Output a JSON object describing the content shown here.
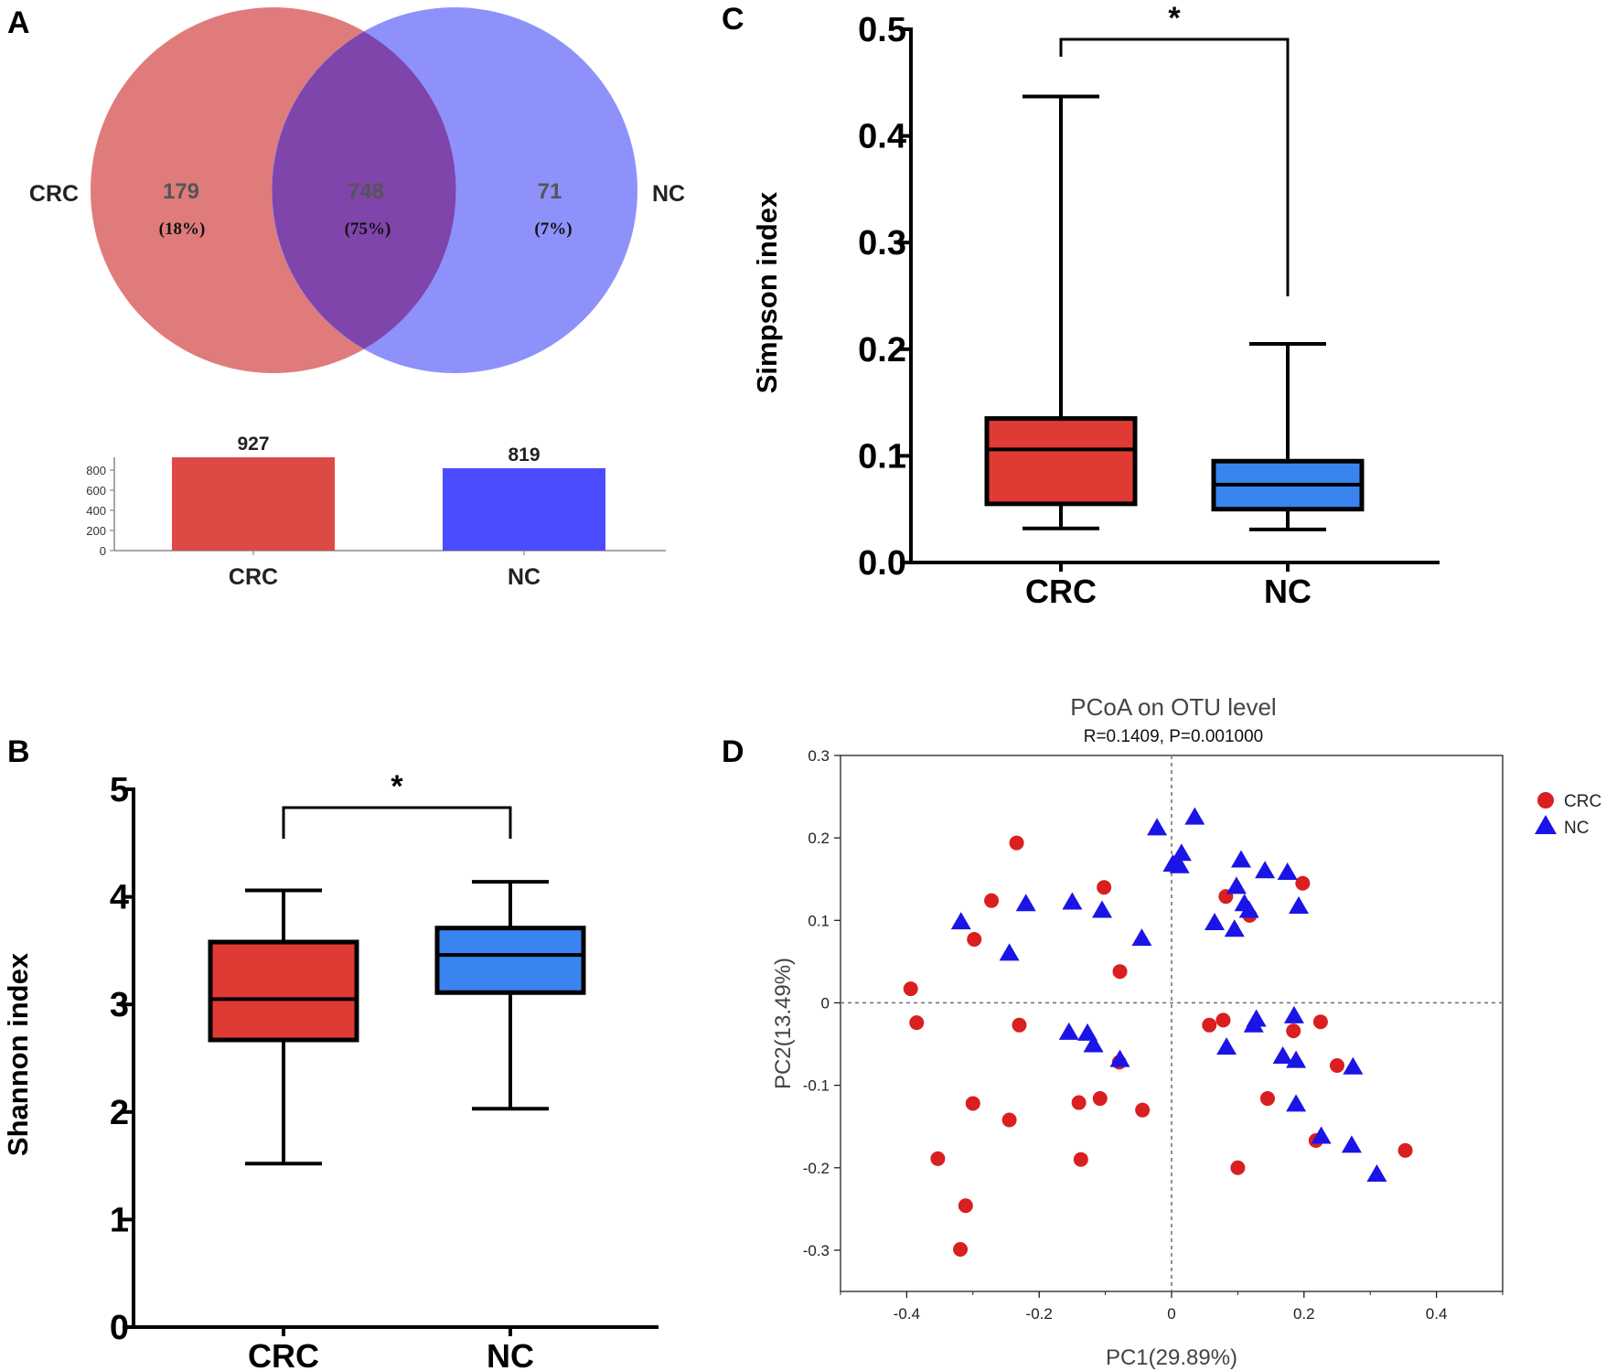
{
  "panels": {
    "a": {
      "label": "A"
    },
    "b": {
      "label": "B"
    },
    "c": {
      "label": "C"
    },
    "d": {
      "label": "D"
    }
  },
  "colors": {
    "crc": "#dd4a46",
    "nc": "#4b4cff",
    "crc_venn": "#e07b7b",
    "nc_venn": "#8f91fb",
    "overlap": "#7f45aa",
    "box_crc": "#df3b34",
    "box_nc": "#3a84f0",
    "pcoa_crc": "#d91f1f",
    "pcoa_nc": "#1a14e6"
  },
  "chart_data": [
    {
      "type": "venn",
      "panel": "A",
      "sets": [
        {
          "name": "CRC",
          "unique": 179,
          "unique_pct": "(18%)"
        },
        {
          "name": "NC",
          "unique": 71,
          "unique_pct": "(7%)"
        }
      ],
      "overlap": {
        "value": 748,
        "pct": "(75%)"
      }
    },
    {
      "type": "bar",
      "panel": "A",
      "categories": [
        "CRC",
        "NC"
      ],
      "values": [
        927,
        819
      ],
      "value_labels": [
        "927",
        "819"
      ],
      "yticks": [
        0,
        200,
        400,
        600,
        800
      ],
      "ylim": [
        0,
        927
      ]
    },
    {
      "type": "box",
      "panel": "B",
      "ylabel": "Shannon index",
      "ylim": [
        0,
        5
      ],
      "yticks": [
        0,
        1,
        2,
        3,
        4,
        5
      ],
      "significance": "*",
      "groups": [
        {
          "name": "CRC",
          "min": 1.52,
          "q1": 2.67,
          "median": 3.05,
          "q3": 3.58,
          "max": 4.06
        },
        {
          "name": "NC",
          "min": 2.03,
          "q1": 3.11,
          "median": 3.46,
          "q3": 3.71,
          "max": 4.14
        }
      ]
    },
    {
      "type": "box",
      "panel": "C",
      "ylabel": "Simpson index",
      "ylim": [
        0,
        0.5
      ],
      "yticks": [
        "0.0",
        "0.1",
        "0.2",
        "0.3",
        "0.4",
        "0.5"
      ],
      "significance": "*",
      "groups": [
        {
          "name": "CRC",
          "min": 0.032,
          "q1": 0.055,
          "median": 0.106,
          "q3": 0.135,
          "max": 0.437
        },
        {
          "name": "NC",
          "min": 0.031,
          "q1": 0.05,
          "median": 0.073,
          "q3": 0.095,
          "max": 0.205
        }
      ]
    },
    {
      "type": "scatter",
      "panel": "D",
      "title": "PCoA on OTU level",
      "subtitle": "R=0.1409, P=0.001000",
      "xlabel": "PC1(29.89%)",
      "ylabel": "PC2(13.49%)",
      "xlim": [
        -0.5,
        0.5
      ],
      "ylim": [
        -0.35,
        0.3
      ],
      "xticks": [
        "-0.4",
        "-0.2",
        "0",
        "0.2",
        "0.4"
      ],
      "yticks": [
        "0.3",
        "0.2",
        "0.1",
        "0",
        "-0.1",
        "-0.2",
        "-0.3"
      ],
      "series": [
        {
          "name": "CRC",
          "marker": "circle",
          "points": [
            [
              -0.394,
              0.017
            ],
            [
              -0.385,
              -0.024
            ],
            [
              -0.353,
              -0.189
            ],
            [
              -0.311,
              -0.246
            ],
            [
              -0.319,
              -0.299
            ],
            [
              -0.3,
              -0.122
            ],
            [
              -0.298,
              0.077
            ],
            [
              -0.272,
              0.124
            ],
            [
              -0.245,
              -0.142
            ],
            [
              -0.234,
              0.194
            ],
            [
              -0.23,
              -0.027
            ],
            [
              -0.14,
              -0.121
            ],
            [
              -0.137,
              -0.19
            ],
            [
              -0.108,
              -0.116
            ],
            [
              -0.102,
              0.14
            ],
            [
              -0.079,
              -0.072
            ],
            [
              -0.078,
              0.038
            ],
            [
              -0.044,
              -0.13
            ],
            [
              0.057,
              -0.027
            ],
            [
              0.078,
              -0.021
            ],
            [
              0.082,
              0.129
            ],
            [
              0.1,
              -0.2
            ],
            [
              0.118,
              0.106
            ],
            [
              0.145,
              -0.116
            ],
            [
              0.184,
              -0.034
            ],
            [
              0.198,
              0.145
            ],
            [
              0.218,
              -0.167
            ],
            [
              0.225,
              -0.023
            ],
            [
              0.25,
              -0.076
            ],
            [
              0.353,
              -0.179
            ]
          ]
        },
        {
          "name": "NC",
          "marker": "triangle",
          "points": [
            [
              -0.318,
              0.098
            ],
            [
              -0.245,
              0.06
            ],
            [
              -0.22,
              0.12
            ],
            [
              -0.15,
              0.122
            ],
            [
              -0.155,
              -0.036
            ],
            [
              -0.127,
              -0.037
            ],
            [
              -0.118,
              -0.051
            ],
            [
              -0.105,
              0.112
            ],
            [
              -0.078,
              -0.069
            ],
            [
              -0.045,
              0.078
            ],
            [
              -0.022,
              0.212
            ],
            [
              0.002,
              0.168
            ],
            [
              0.012,
              0.166
            ],
            [
              0.015,
              0.181
            ],
            [
              0.035,
              0.225
            ],
            [
              0.065,
              0.097
            ],
            [
              0.083,
              -0.054
            ],
            [
              0.095,
              0.089
            ],
            [
              0.098,
              0.141
            ],
            [
              0.105,
              0.173
            ],
            [
              0.11,
              0.12
            ],
            [
              0.117,
              0.112
            ],
            [
              0.124,
              -0.027
            ],
            [
              0.128,
              -0.02
            ],
            [
              0.141,
              0.16
            ],
            [
              0.168,
              -0.065
            ],
            [
              0.175,
              0.158
            ],
            [
              0.185,
              -0.016
            ],
            [
              0.188,
              -0.07
            ],
            [
              0.188,
              -0.123
            ],
            [
              0.192,
              0.117
            ],
            [
              0.226,
              -0.162
            ],
            [
              0.272,
              -0.173
            ],
            [
              0.274,
              -0.078
            ],
            [
              0.31,
              -0.208
            ]
          ]
        }
      ]
    }
  ]
}
